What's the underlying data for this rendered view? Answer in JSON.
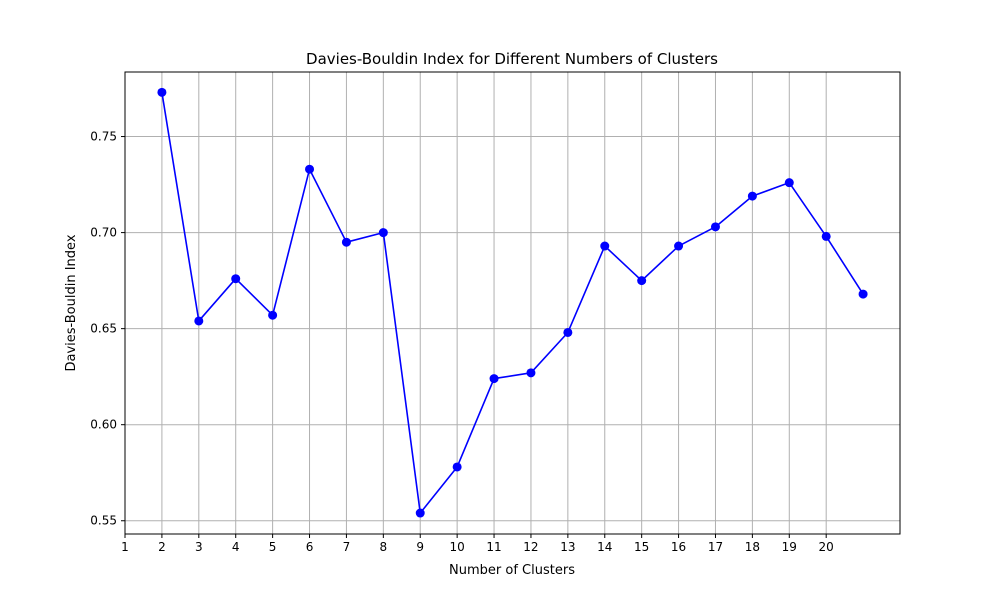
{
  "chart_data": {
    "type": "line",
    "title": "Davies-Bouldin Index for Different Numbers of Clusters",
    "xlabel": "Number of Clusters",
    "ylabel": "Davies-Bouldin Index",
    "x": [
      2,
      3,
      4,
      5,
      6,
      7,
      8,
      9,
      10,
      11,
      12,
      13,
      14,
      15,
      16,
      17,
      18,
      19,
      20,
      21
    ],
    "series": [
      {
        "values": [
          0.773,
          0.654,
          0.676,
          0.657,
          0.733,
          0.695,
          0.7,
          0.554,
          0.578,
          0.624,
          0.627,
          0.648,
          0.693,
          0.675,
          0.693,
          0.703,
          0.719,
          0.726,
          0.698,
          0.668
        ],
        "color": "#0000ff",
        "marker": "circle"
      }
    ],
    "xticks": [
      1,
      2,
      3,
      4,
      5,
      6,
      7,
      8,
      9,
      10,
      11,
      12,
      13,
      14,
      15,
      16,
      17,
      18,
      19,
      20
    ],
    "xtick_labels": [
      "1",
      "2",
      "3",
      "4",
      "5",
      "6",
      "7",
      "8",
      "9",
      "10",
      "11",
      "12",
      "13",
      "14",
      "15",
      "16",
      "17",
      "18",
      "19",
      "20"
    ],
    "yticks": [
      0.55,
      0.6,
      0.65,
      0.7,
      0.75
    ],
    "ytick_labels": [
      "0.55",
      "0.60",
      "0.65",
      "0.70",
      "0.75"
    ],
    "xlim": [
      1,
      22
    ],
    "ylim": [
      0.5431,
      0.7836
    ],
    "grid": true
  }
}
